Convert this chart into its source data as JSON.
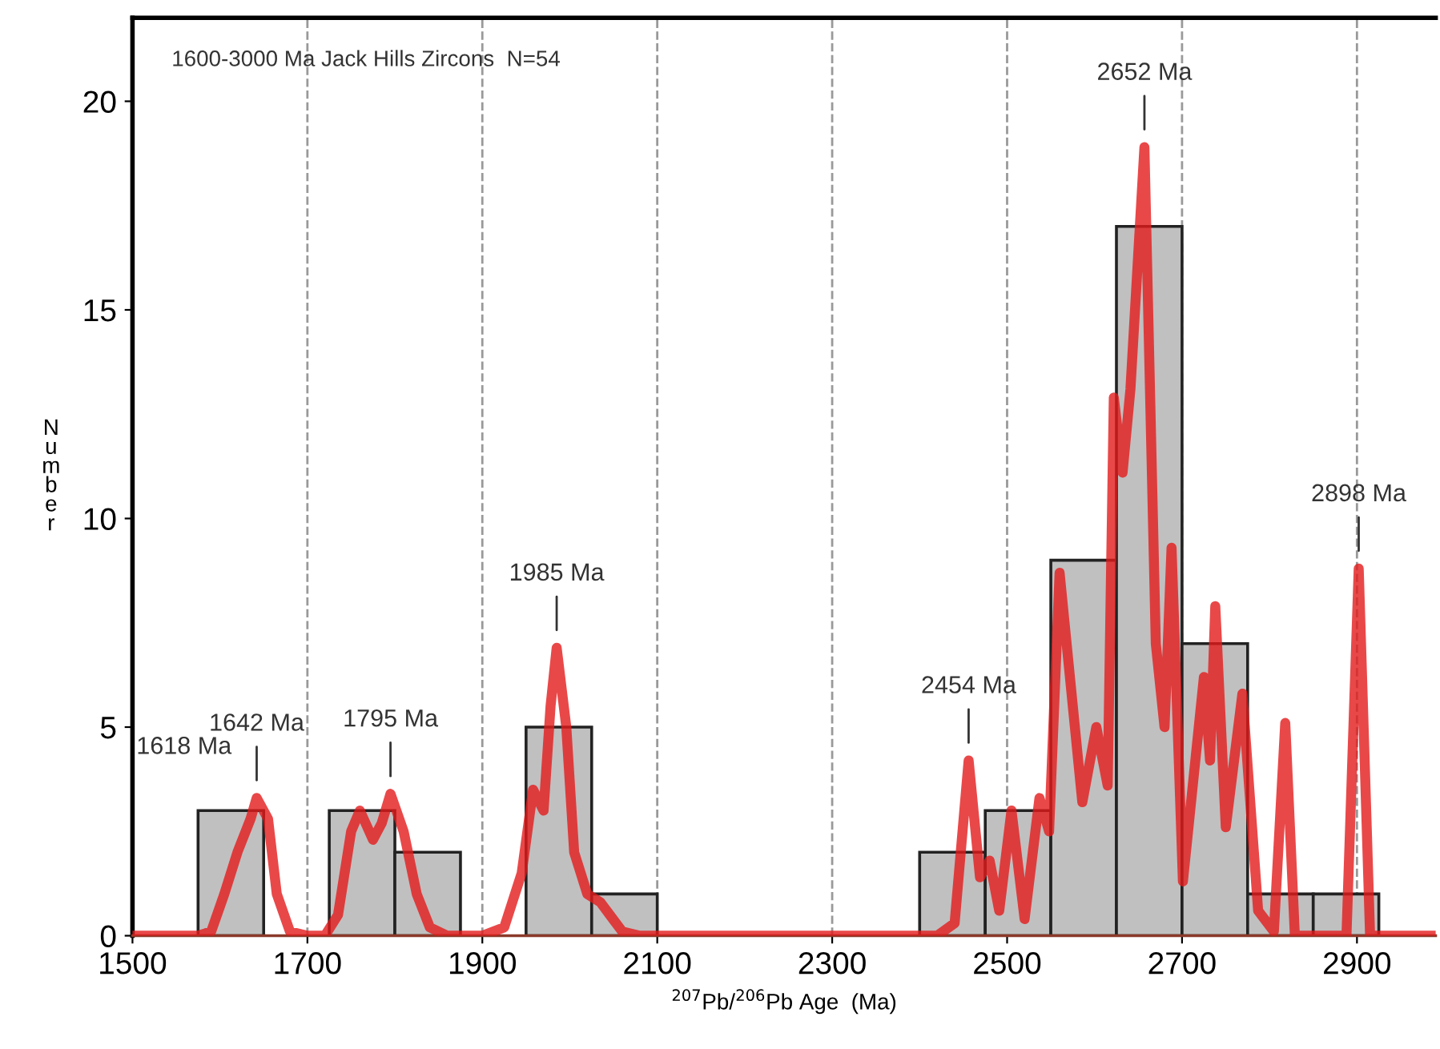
{
  "chart_data": {
    "type": "histogram",
    "title": "1600-3000 Ma Jack Hills Zircons  N=54",
    "xlabel": "$^{207}$Pb/$^{206}$Pb Age  (Ma)",
    "ylabel": "Number",
    "series": [
      {
        "color": "#c0c0c0",
        "bins": [
          1575,
          1650,
          1725,
          1800,
          1875,
          1950,
          2025,
          2100,
          2175,
          2250,
          2325,
          2400,
          2475,
          2550,
          2625,
          2700,
          2775,
          2850,
          2925
        ],
        "values": [
          3,
          0,
          3,
          2,
          0,
          5,
          1,
          0,
          0,
          0,
          0,
          2,
          3,
          9,
          17,
          7,
          1,
          1
        ]
      },
      {
        "type": "line",
        "color": "#e31a1c",
        "x": [
          1500,
          1575,
          1590,
          1605,
          1620,
          1635,
          1642,
          1655,
          1665,
          1680,
          1700,
          1720,
          1735,
          1750,
          1760,
          1775,
          1785,
          1795,
          1810,
          1825,
          1840,
          1860,
          1900,
          1925,
          1945,
          1958,
          1970,
          1978,
          1985,
          1996,
          2005,
          2020,
          2035,
          2060,
          2080,
          2420,
          2440,
          2456,
          2469,
          2480,
          2491,
          2505,
          2520,
          2537,
          2548,
          2560,
          2586,
          2602,
          2615,
          2622,
          2632,
          2641,
          2657,
          2670,
          2680,
          2688,
          2701,
          2725,
          2732,
          2738,
          2750,
          2769,
          2787,
          2805,
          2818,
          2829,
          2888,
          2902,
          2915,
          2990
        ],
        "values": [
          0,
          0,
          0.1,
          1.0,
          2.0,
          2.8,
          3.3,
          2.8,
          1.0,
          0.1,
          0,
          0,
          0.5,
          2.5,
          3.0,
          2.3,
          2.7,
          3.4,
          2.5,
          1.0,
          0.2,
          0,
          0,
          0.2,
          1.5,
          3.5,
          3.0,
          5.5,
          6.9,
          5.0,
          2.0,
          1.0,
          0.8,
          0.1,
          0,
          0,
          0.3,
          4.2,
          1.4,
          1.8,
          0.6,
          3.0,
          0.4,
          3.3,
          2.5,
          8.7,
          3.2,
          5.0,
          3.6,
          12.9,
          11.1,
          13.1,
          18.9,
          7.0,
          5.0,
          9.3,
          1.3,
          6.2,
          4.2,
          7.9,
          2.6,
          5.8,
          0.6,
          0.1,
          5.1,
          0,
          0,
          8.8,
          0,
          0
        ]
      }
    ],
    "annotations": [
      "1618 Ma",
      {
        "text": "1642 Ma",
        "x": 1642,
        "y": 3.3
      },
      {
        "text": "1795 Ma",
        "x": 1795,
        "y": 3.4
      },
      {
        "text": "1985 Ma",
        "x": 1985,
        "y": 6.9
      },
      {
        "text": "2454 Ma",
        "x": 2456,
        "y": 4.2
      },
      {
        "text": "2652 Ma",
        "x": 2657,
        "y": 18.9
      },
      {
        "text": "2898 Ma",
        "x": 2902,
        "y": 8.8
      }
    ],
    "ref_lines": [
      {
        "axis": "x",
        "value": 1700,
        "color": "#999999",
        "line_style": "dashed"
      },
      {
        "axis": "x",
        "value": 1900,
        "color": "#999999",
        "line_style": "dashed"
      },
      {
        "axis": "x",
        "value": 2100,
        "color": "#999999",
        "line_style": "dashed"
      },
      {
        "axis": "x",
        "value": 2300,
        "color": "#999999",
        "line_style": "dashed"
      },
      {
        "axis": "x",
        "value": 2500,
        "color": "#999999",
        "line_style": "dashed"
      },
      {
        "axis": "x",
        "value": 2700,
        "color": "#999999",
        "line_style": "dashed"
      },
      {
        "axis": "x",
        "value": 2900,
        "color": "#999999",
        "line_style": "dashed"
      }
    ],
    "xlim": [
      1500,
      2990
    ],
    "ylim": [
      0,
      22
    ],
    "xticks": [
      1500,
      1700,
      1900,
      2100,
      2300,
      2500,
      2700,
      2900
    ],
    "yticks": [
      0,
      5,
      10,
      15,
      20
    ],
    "grid": false,
    "legend": false
  }
}
